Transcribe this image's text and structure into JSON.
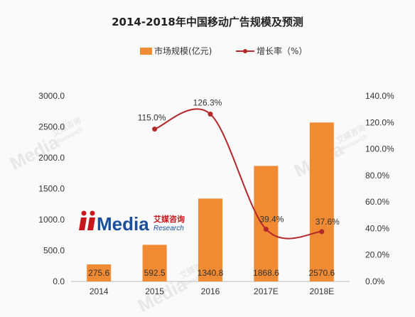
{
  "chart_data": {
    "type": "bar",
    "title": "2014-2018年中国移动广告规模及预测",
    "categories": [
      "2014",
      "2015",
      "2016",
      "2017E",
      "2018E"
    ],
    "series": [
      {
        "name": "市场规模(亿元)",
        "type": "bar",
        "axis": "left",
        "color": "#f08a33",
        "values": [
          275.6,
          592.5,
          1340.8,
          1868.6,
          2570.6
        ],
        "labels": [
          "275.6",
          "592.5",
          "1340.8",
          "1868.6",
          "2570.6"
        ]
      },
      {
        "name": "增长率（%）",
        "type": "line",
        "axis": "right",
        "color": "#b4282a",
        "values": [
          null,
          115.0,
          126.3,
          39.4,
          37.6
        ],
        "labels": [
          "",
          "115.0%",
          "126.3%",
          "39.4%",
          "37.6%"
        ]
      }
    ],
    "y_left": {
      "ylim": [
        0,
        3000
      ],
      "ticks": [
        "0.0",
        "500.0",
        "1000.0",
        "1500.0",
        "2000.0",
        "2500.0",
        "3000.0"
      ]
    },
    "y_right": {
      "ylim": [
        0,
        140
      ],
      "ticks": [
        "0.0%",
        "20.0%",
        "40.0%",
        "60.0%",
        "80.0%",
        "100.0%",
        "120.0%",
        "140.0%"
      ]
    },
    "grid": false,
    "legend": "top-center"
  },
  "watermark": {
    "brand": "Media",
    "brand_cn": "艾媒咨询",
    "brand_en": "Research"
  },
  "colors": {
    "background": "#fafafa",
    "axis": "#bbbbbb",
    "logo_blue": "#1b4f9c",
    "logo_red": "#c8161d"
  }
}
